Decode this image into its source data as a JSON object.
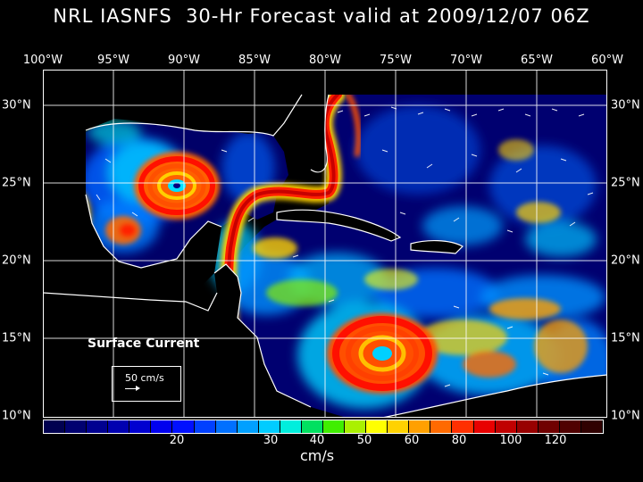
{
  "title": "NRL IASNFS  30-Hr Forecast valid at 2009/12/07 06Z",
  "lon_labels": [
    "100°W",
    "95°W",
    "90°W",
    "85°W",
    "80°W",
    "75°W",
    "70°W",
    "65°W",
    "60°W"
  ],
  "lat_labels": [
    "30°N",
    "25°N",
    "20°N",
    "15°N",
    "10°N"
  ],
  "field_label": "Surface Current",
  "scale_label": "50 cm/s",
  "colorbar": {
    "tick_labels": [
      "20",
      "30",
      "40",
      "50",
      "60",
      "80",
      "100",
      "120"
    ],
    "units": "cm/s",
    "colors": [
      "#000050",
      "#000070",
      "#000090",
      "#0000b0",
      "#0000d0",
      "#0000ee",
      "#0010ff",
      "#0040ff",
      "#0070ff",
      "#00a0ff",
      "#00ccff",
      "#00eedd",
      "#00e060",
      "#40ee00",
      "#aaf000",
      "#ffff00",
      "#ffd200",
      "#ffa000",
      "#ff6a00",
      "#ff3000",
      "#e80000",
      "#c00000",
      "#980000",
      "#700000",
      "#500000",
      "#300000"
    ]
  },
  "colors": {
    "background": "#000000",
    "ocean_base": "#000060",
    "coastline": "#ffffff",
    "loop_current": "#c81400"
  }
}
